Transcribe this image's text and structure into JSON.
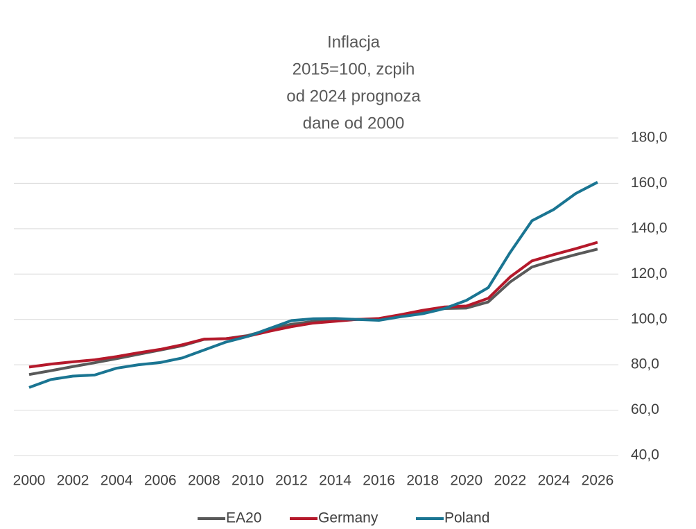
{
  "chart_data": {
    "type": "line",
    "title": "Inflacja",
    "subtitle": [
      "2015=100, zcpih",
      "od 2024 prognoza",
      "dane od 2000"
    ],
    "x": [
      2000,
      2001,
      2002,
      2003,
      2004,
      2005,
      2006,
      2007,
      2008,
      2009,
      2010,
      2011,
      2012,
      2013,
      2014,
      2015,
      2016,
      2017,
      2018,
      2019,
      2020,
      2021,
      2022,
      2023,
      2024,
      2025,
      2026
    ],
    "xlim": [
      2000,
      2026
    ],
    "xticks": [
      2000,
      2002,
      2004,
      2006,
      2008,
      2010,
      2012,
      2014,
      2016,
      2018,
      2020,
      2022,
      2024,
      2026
    ],
    "ylim": [
      40,
      180
    ],
    "yticks": [
      {
        "value": 40,
        "label": "40,0"
      },
      {
        "value": 60,
        "label": "60,0"
      },
      {
        "value": 80,
        "label": "80,0"
      },
      {
        "value": 100,
        "label": "100,0"
      },
      {
        "value": 120,
        "label": "120,0"
      },
      {
        "value": 140,
        "label": "140,0"
      },
      {
        "value": 160,
        "label": "160,0"
      },
      {
        "value": 180,
        "label": "180,0"
      }
    ],
    "grid": true,
    "legend": "bottom",
    "series": [
      {
        "name": "EA20",
        "color": "#595959",
        "values": [
          75.7,
          77.4,
          79.2,
          80.9,
          82.7,
          84.6,
          86.5,
          88.4,
          91.2,
          91.5,
          92.9,
          95.5,
          97.9,
          99.1,
          99.6,
          100,
          100.2,
          101.7,
          103.5,
          104.8,
          105.0,
          107.7,
          116.5,
          123.1,
          126.0,
          128.6,
          131.0
        ]
      },
      {
        "name": "Germany",
        "color": "#b5192b",
        "values": [
          79,
          80.3,
          81.3,
          82.2,
          83.6,
          85.3,
          86.8,
          88.8,
          91.3,
          91.5,
          92.6,
          94.8,
          96.8,
          98.4,
          99.2,
          100,
          100.4,
          102.1,
          104.0,
          105.5,
          105.9,
          109.3,
          118.7,
          125.8,
          128.6,
          131.2,
          134.0
        ]
      },
      {
        "name": "Poland",
        "color": "#1a7592",
        "values": [
          70,
          73.5,
          75,
          75.5,
          78.5,
          80,
          81,
          83,
          86.5,
          90,
          92.5,
          96,
          99.5,
          100.3,
          100.4,
          100,
          99.6,
          101.2,
          102.5,
          104.8,
          108.4,
          114,
          129.5,
          143.5,
          148.5,
          155.5,
          160.5
        ]
      }
    ]
  }
}
